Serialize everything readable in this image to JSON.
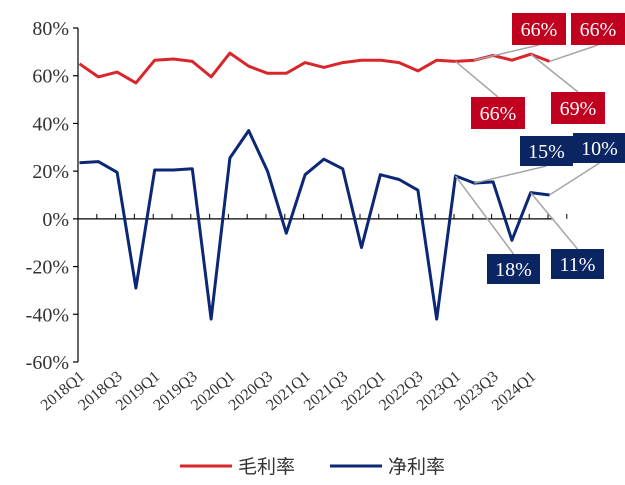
{
  "chart_data": {
    "type": "line",
    "title": "",
    "xlabel": "",
    "ylabel": "",
    "ylim": [
      -60,
      80
    ],
    "yticks": [
      -60,
      -40,
      -20,
      0,
      20,
      40,
      60,
      80
    ],
    "y_tick_suffix": "%",
    "grid": false,
    "legend_position": "bottom",
    "x": [
      "2018Q1",
      "2018Q2",
      "2018Q3",
      "2018Q4",
      "2019Q1",
      "2019Q2",
      "2019Q3",
      "2019Q4",
      "2020Q1",
      "2020Q2",
      "2020Q3",
      "2020Q4",
      "2021Q1",
      "2021Q2",
      "2021Q3",
      "2021Q4",
      "2022Q1",
      "2022Q2",
      "2022Q3",
      "2022Q4",
      "2023Q1",
      "2023Q2",
      "2023Q3",
      "2023Q4",
      "2024Q1",
      "2024Q2"
    ],
    "x_tick_labels": [
      "2018Q1",
      "2018Q3",
      "2019Q1",
      "2019Q3",
      "2020Q1",
      "2020Q3",
      "2021Q1",
      "2021Q3",
      "2022Q1",
      "2022Q3",
      "2023Q1",
      "2023Q3",
      "2024Q1"
    ],
    "series": [
      {
        "name": "毛利率",
        "color": "#d9262b",
        "values": [
          65,
          59.5,
          61.5,
          57,
          66.5,
          67,
          66,
          59.5,
          69.5,
          64,
          61,
          61,
          65.5,
          63.5,
          65.5,
          66.5,
          66.5,
          65.5,
          62,
          66.5,
          66,
          66.5,
          68.5,
          66.5,
          69,
          66
        ]
      },
      {
        "name": "净利率",
        "color": "#0b2776",
        "values": [
          23.5,
          24,
          19.5,
          -29,
          20.5,
          20.5,
          21,
          -42,
          25.5,
          37,
          20,
          -6,
          18.5,
          25,
          21,
          -12,
          18.5,
          16.5,
          12,
          -42,
          18,
          15,
          15.5,
          -9,
          11,
          10
        ]
      }
    ],
    "annotations": [
      {
        "text": "66%",
        "series": 0,
        "index": 20,
        "fill": "#c0001e"
      },
      {
        "text": "66%",
        "series": 0,
        "index": 21,
        "fill": "#c0001e"
      },
      {
        "text": "69%",
        "series": 0,
        "index": 24,
        "fill": "#c0001e"
      },
      {
        "text": "66%",
        "series": 0,
        "index": 25,
        "fill": "#c0001e"
      },
      {
        "text": "18%",
        "series": 1,
        "index": 20,
        "fill": "#0b2563"
      },
      {
        "text": "15%",
        "series": 1,
        "index": 21,
        "fill": "#0b2563"
      },
      {
        "text": "11%",
        "series": 1,
        "index": 24,
        "fill": "#0b2563"
      },
      {
        "text": "10%",
        "series": 1,
        "index": 25,
        "fill": "#0b2563"
      }
    ]
  }
}
